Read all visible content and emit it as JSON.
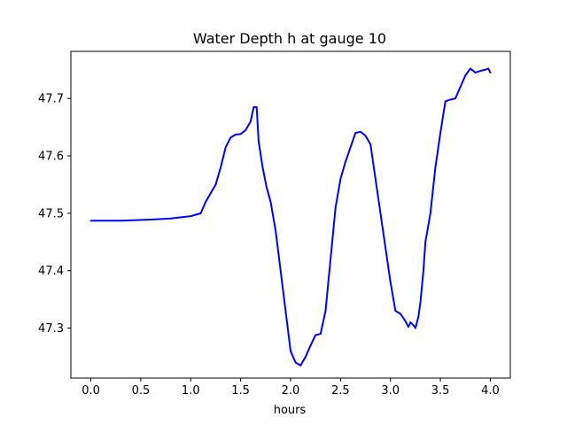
{
  "chart_data": {
    "type": "line",
    "title": "Water Depth h at gauge 10",
    "xlabel": "hours",
    "ylabel": "",
    "xlim": [
      -0.2,
      4.2
    ],
    "ylim": [
      47.213,
      47.782
    ],
    "xticks": [
      0.0,
      0.5,
      1.0,
      1.5,
      2.0,
      2.5,
      3.0,
      3.5,
      4.0
    ],
    "xtick_labels": [
      "0.0",
      "0.5",
      "1.0",
      "1.5",
      "2.0",
      "2.5",
      "3.0",
      "3.5",
      "4.0"
    ],
    "yticks": [
      47.3,
      47.4,
      47.5,
      47.6,
      47.7
    ],
    "ytick_labels": [
      "47.3",
      "47.4",
      "47.5",
      "47.6",
      "47.7"
    ],
    "grid": false,
    "series": [
      {
        "color": "#0000ff",
        "x": [
          0.0,
          0.3,
          0.6,
          0.8,
          1.0,
          1.1,
          1.15,
          1.2,
          1.25,
          1.3,
          1.35,
          1.4,
          1.45,
          1.5,
          1.55,
          1.6,
          1.63,
          1.66,
          1.68,
          1.72,
          1.76,
          1.8,
          1.85,
          1.9,
          1.95,
          2.0,
          2.05,
          2.1,
          2.15,
          2.2,
          2.25,
          2.3,
          2.35,
          2.4,
          2.45,
          2.5,
          2.55,
          2.6,
          2.65,
          2.7,
          2.75,
          2.8,
          2.85,
          2.9,
          2.95,
          3.0,
          3.05,
          3.1,
          3.15,
          3.18,
          3.2,
          3.23,
          3.25,
          3.28,
          3.3,
          3.33,
          3.35,
          3.4,
          3.45,
          3.5,
          3.55,
          3.6,
          3.65,
          3.7,
          3.75,
          3.8,
          3.85,
          3.9,
          3.95,
          3.98,
          4.0
        ],
        "y": [
          47.487,
          47.487,
          47.489,
          47.491,
          47.495,
          47.5,
          47.52,
          47.535,
          47.55,
          47.58,
          47.615,
          47.632,
          47.637,
          47.638,
          47.645,
          47.66,
          47.685,
          47.685,
          47.625,
          47.58,
          47.545,
          47.52,
          47.47,
          47.4,
          47.33,
          47.26,
          47.24,
          47.235,
          47.25,
          47.27,
          47.288,
          47.29,
          47.33,
          47.42,
          47.51,
          47.56,
          47.59,
          47.615,
          47.64,
          47.642,
          47.635,
          47.62,
          47.56,
          47.5,
          47.44,
          47.38,
          47.33,
          47.325,
          47.312,
          47.302,
          47.31,
          47.305,
          47.3,
          47.32,
          47.345,
          47.4,
          47.45,
          47.5,
          47.58,
          47.64,
          47.695,
          47.698,
          47.7,
          47.72,
          47.74,
          47.752,
          47.745,
          47.748,
          47.75,
          47.752,
          47.745
        ]
      }
    ]
  }
}
